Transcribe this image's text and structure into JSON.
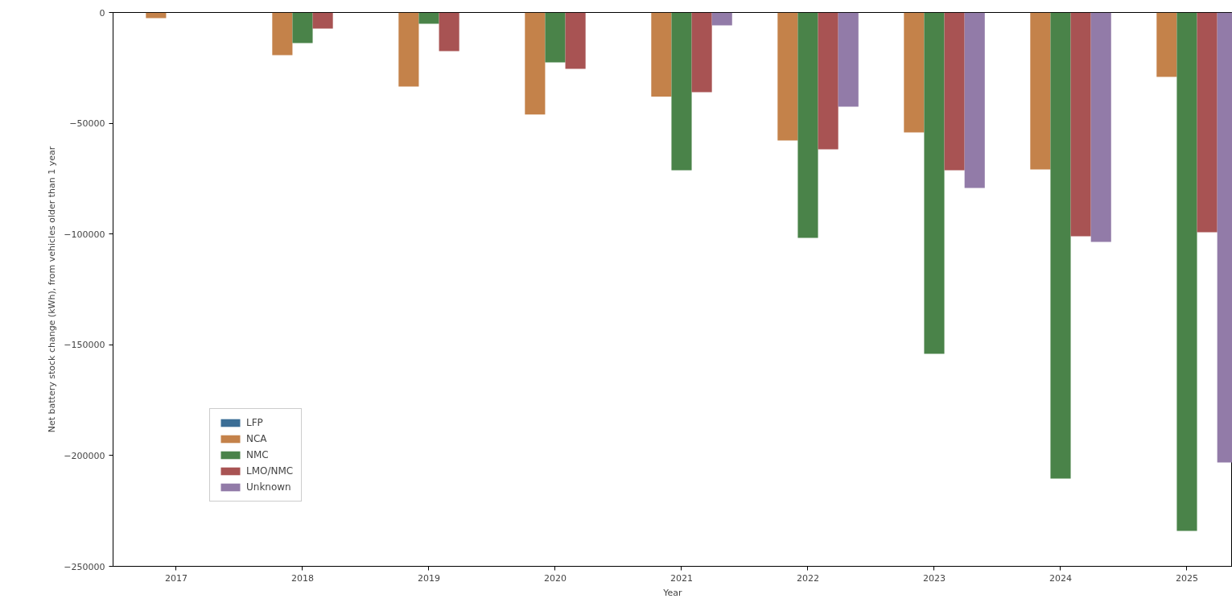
{
  "chart_data": {
    "type": "bar",
    "xlabel": "Year",
    "ylabel": "Net battery stock change (kWh), from vehicles older than 1 year",
    "categories": [
      "2017",
      "2018",
      "2019",
      "2020",
      "2021",
      "2022",
      "2023",
      "2024",
      "2025"
    ],
    "series": [
      {
        "name": "LFP",
        "color": "#3b6e96",
        "values": [
          0,
          0,
          0,
          0,
          0,
          0,
          0,
          0,
          0
        ]
      },
      {
        "name": "NCA",
        "color": "#c4824a",
        "values": [
          -2500,
          -19300,
          -33400,
          -46100,
          -38000,
          -57800,
          -54100,
          -70900,
          -29100
        ]
      },
      {
        "name": "NMC",
        "color": "#4a8349",
        "values": [
          0,
          -13800,
          -5100,
          -22500,
          -71200,
          -101700,
          -154100,
          -210400,
          -234000
        ]
      },
      {
        "name": "LMO/NMC",
        "color": "#a85353",
        "values": [
          0,
          -7300,
          -17400,
          -25400,
          -36000,
          -61800,
          -71200,
          -101000,
          -99200
        ]
      },
      {
        "name": "Unknown",
        "color": "#927ba8",
        "values": [
          0,
          0,
          0,
          0,
          -5800,
          -42500,
          -79200,
          -103600,
          -203100
        ]
      }
    ],
    "ylim": [
      -250000,
      0
    ],
    "yticks": [
      -250000,
      -200000,
      -150000,
      -100000,
      -50000,
      0
    ],
    "legend": "bottom left"
  }
}
